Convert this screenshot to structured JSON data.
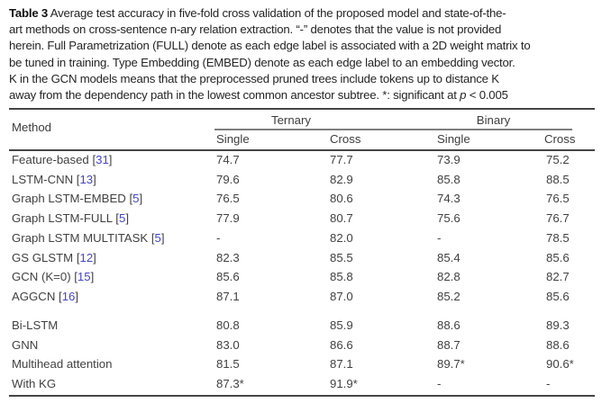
{
  "caption": {
    "label": "Table 3",
    "line1": " Average test accuracy in five-fold cross validation of the proposed model and state-of-the-",
    "line2": "art methods on cross-sentence n-ary relation extraction. “-” denotes that the value is not provided",
    "line3": "herein. Full Parametrization (FULL) denote as each edge label is associated with a 2D weight matrix to",
    "line4": "be tuned in training. Type Embedding (EMBED) denote as each edge label to an embedding vector.",
    "line5": "K in the GCN models means that the preprocessed pruned trees include tokens up to distance K",
    "line6_pre": "away from the dependency path in the lowest common ancestor subtree. *: significant at ",
    "line6_italic": "p",
    "line6_post": " < 0.005"
  },
  "table": {
    "cite_open": " [",
    "cite_close": "]",
    "header": {
      "method": "Method",
      "group_ternary": "Ternary",
      "group_binary": "Binary",
      "sub1": "Single",
      "sub2": "Cross",
      "sub3": "Single",
      "sub4": "Cross"
    },
    "colors": {
      "citation_blue": "#4244d4",
      "rule_dark": "#454545",
      "rule_light": "#7e7e7e"
    },
    "groups": [
      {
        "rows": [
          {
            "method": "Feature-based",
            "cite": "31",
            "values": [
              "74.7",
              "77.7",
              "73.9",
              "75.2"
            ]
          },
          {
            "method": "LSTM-CNN",
            "cite": "13",
            "values": [
              "79.6",
              "82.9",
              "85.8",
              "88.5"
            ]
          },
          {
            "method": "Graph LSTM-EMBED",
            "cite": "5",
            "values": [
              "76.5",
              "80.6",
              "74.3",
              "76.5"
            ]
          },
          {
            "method": "Graph LSTM-FULL",
            "cite": "5",
            "values": [
              "77.9",
              "80.7",
              "75.6",
              "76.7"
            ]
          },
          {
            "method": "Graph LSTM MULTITASK",
            "cite": "5",
            "values": [
              "-",
              "82.0",
              "-",
              "78.5"
            ]
          },
          {
            "method": "GS GLSTM",
            "cite": "12",
            "values": [
              "82.3",
              "85.5",
              "85.4",
              "85.6"
            ]
          },
          {
            "method": "GCN (K=0)",
            "cite": "15",
            "values": [
              "85.6",
              "85.8",
              "82.8",
              "82.7"
            ]
          },
          {
            "method": "AGGCN",
            "cite": "16",
            "values": [
              "87.1",
              "87.0",
              "85.2",
              "85.6"
            ]
          }
        ]
      },
      {
        "rows": [
          {
            "method": "Bi-LSTM",
            "cite": null,
            "values": [
              "80.8",
              "85.9",
              "88.6",
              "89.3"
            ]
          },
          {
            "method": "GNN",
            "cite": null,
            "values": [
              "83.0",
              "86.6",
              "88.7",
              "88.6"
            ]
          },
          {
            "method": "Multihead attention",
            "cite": null,
            "values": [
              "81.5",
              "87.1",
              "89.7*",
              "90.6*"
            ]
          },
          {
            "method": "With KG",
            "cite": null,
            "values": [
              "87.3*",
              "91.9*",
              "-",
              "-"
            ]
          }
        ]
      }
    ]
  }
}
